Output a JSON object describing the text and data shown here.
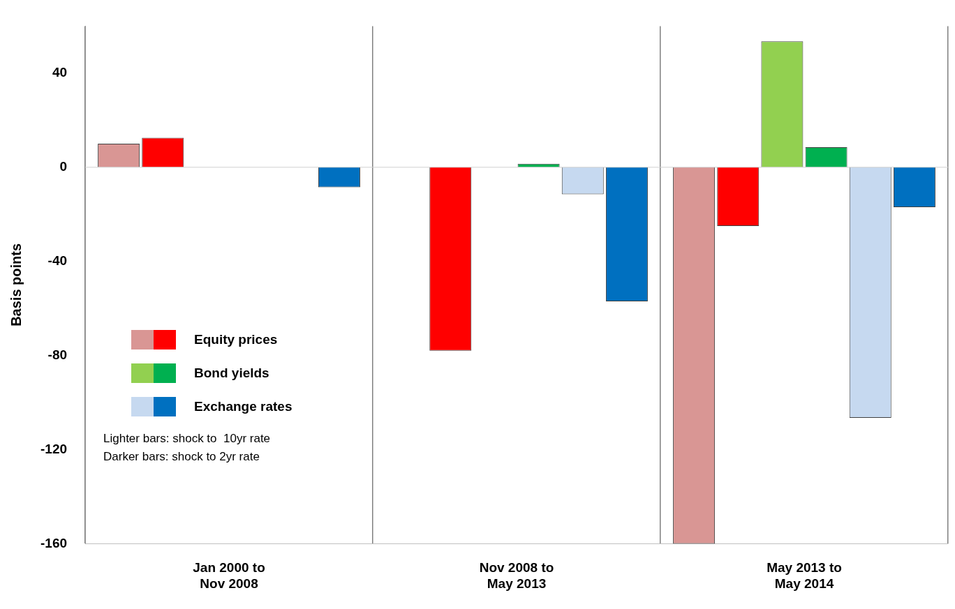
{
  "chart_data": {
    "type": "bar",
    "ylabel": "Basis points",
    "categories": [
      "Jan 2000 to\nNov 2008",
      "Nov 2008 to\nMay 2013",
      "May 2013 to\nMay 2014"
    ],
    "series": [
      {
        "color": "#d99694",
        "values": [
          10,
          null,
          -160
        ]
      },
      {
        "name": "Equity prices",
        "color": "#ff0000",
        "values": [
          12.5,
          -78,
          -25
        ]
      },
      {
        "color": "#92d050",
        "values": [
          null,
          null,
          53.5
        ]
      },
      {
        "name": "Bond yields",
        "color": "#00b050",
        "values": [
          null,
          1.5,
          8.5
        ]
      },
      {
        "color": "#c6d9f0",
        "values": [
          null,
          -11.5,
          -106.5
        ]
      },
      {
        "name": "Exchange rates",
        "color": "#0070c0",
        "values": [
          -8.5,
          -57,
          -17
        ]
      }
    ],
    "ylim": [
      -160,
      60
    ],
    "yticks": [
      -160,
      -120,
      -80,
      -40,
      0,
      40
    ],
    "grid": "x",
    "legend": "left",
    "annotations": [
      "Lighter bars: shock to  10yr rate",
      "Darker bars: shock to 2yr rate"
    ]
  }
}
